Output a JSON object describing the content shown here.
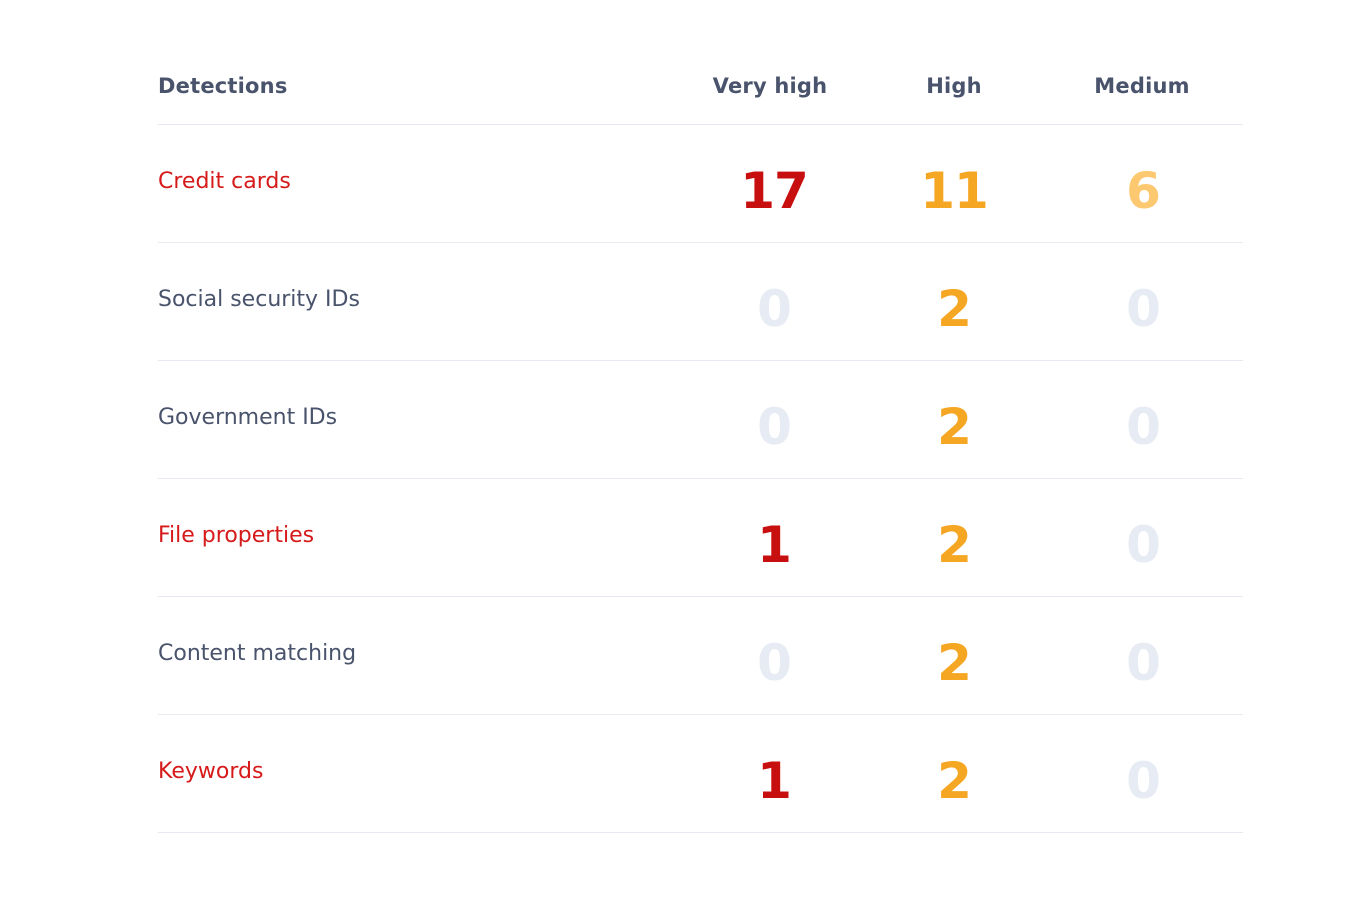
{
  "table": {
    "headers": {
      "label": "Detections",
      "very_high": "Very high",
      "high": "High",
      "medium": "Medium"
    },
    "colors": {
      "alert_label": "#d61a1a",
      "normal_label": "#49536b",
      "very_high": "#c80f0f",
      "high": "#f5a623",
      "medium": "#fcc870",
      "zero": "#e7ebf3"
    },
    "rows": [
      {
        "label": "Credit cards",
        "alert": true,
        "very_high": "17",
        "high": "11",
        "medium": "6"
      },
      {
        "label": "Social security IDs",
        "alert": false,
        "very_high": "0",
        "high": "2",
        "medium": "0"
      },
      {
        "label": "Government IDs",
        "alert": false,
        "very_high": "0",
        "high": "2",
        "medium": "0"
      },
      {
        "label": "File properties",
        "alert": true,
        "very_high": "1",
        "high": "2",
        "medium": "0"
      },
      {
        "label": "Content matching",
        "alert": false,
        "very_high": "0",
        "high": "2",
        "medium": "0"
      },
      {
        "label": "Keywords",
        "alert": true,
        "very_high": "1",
        "high": "2",
        "medium": "0"
      }
    ]
  }
}
